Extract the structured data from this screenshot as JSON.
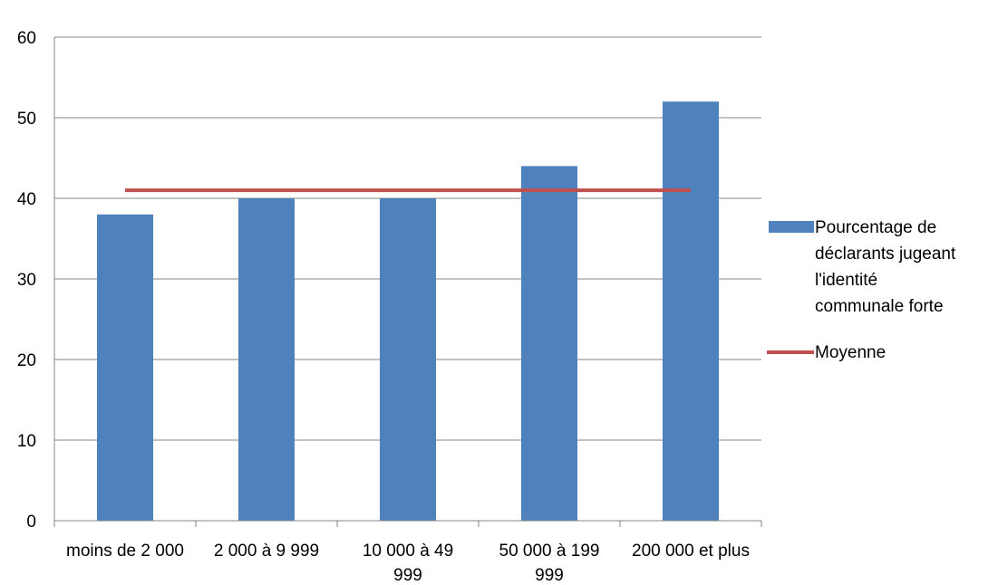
{
  "chart_data": {
    "type": "bar",
    "categories": [
      [
        "moins de 2 000"
      ],
      [
        "2 000 à 9 999"
      ],
      [
        "10 000 à 49",
        "999"
      ],
      [
        "50 000 à 199",
        "999"
      ],
      [
        "200 000 et plus"
      ]
    ],
    "series": [
      {
        "name": "Pourcentage de déclarants jugeant l'identité communale forte",
        "type": "bar",
        "values": [
          38,
          40,
          40,
          44,
          52
        ],
        "color": "#4F81BD"
      },
      {
        "name": "Moyenne",
        "type": "line",
        "values": [
          41,
          41,
          41,
          41,
          41
        ],
        "color": "#C0504D"
      }
    ],
    "ylim": [
      0,
      60
    ],
    "yticks": [
      0,
      10,
      20,
      30,
      40,
      50,
      60
    ],
    "grid": true,
    "legend_position": "right",
    "legend": [
      {
        "marker": "bar",
        "color": "#4F81BD",
        "lines": [
          "Pourcentage de",
          "déclarants jugeant",
          "l'identité",
          "communale forte"
        ]
      },
      {
        "marker": "line",
        "color": "#C0504D",
        "lines": [
          "Moyenne"
        ]
      }
    ]
  }
}
